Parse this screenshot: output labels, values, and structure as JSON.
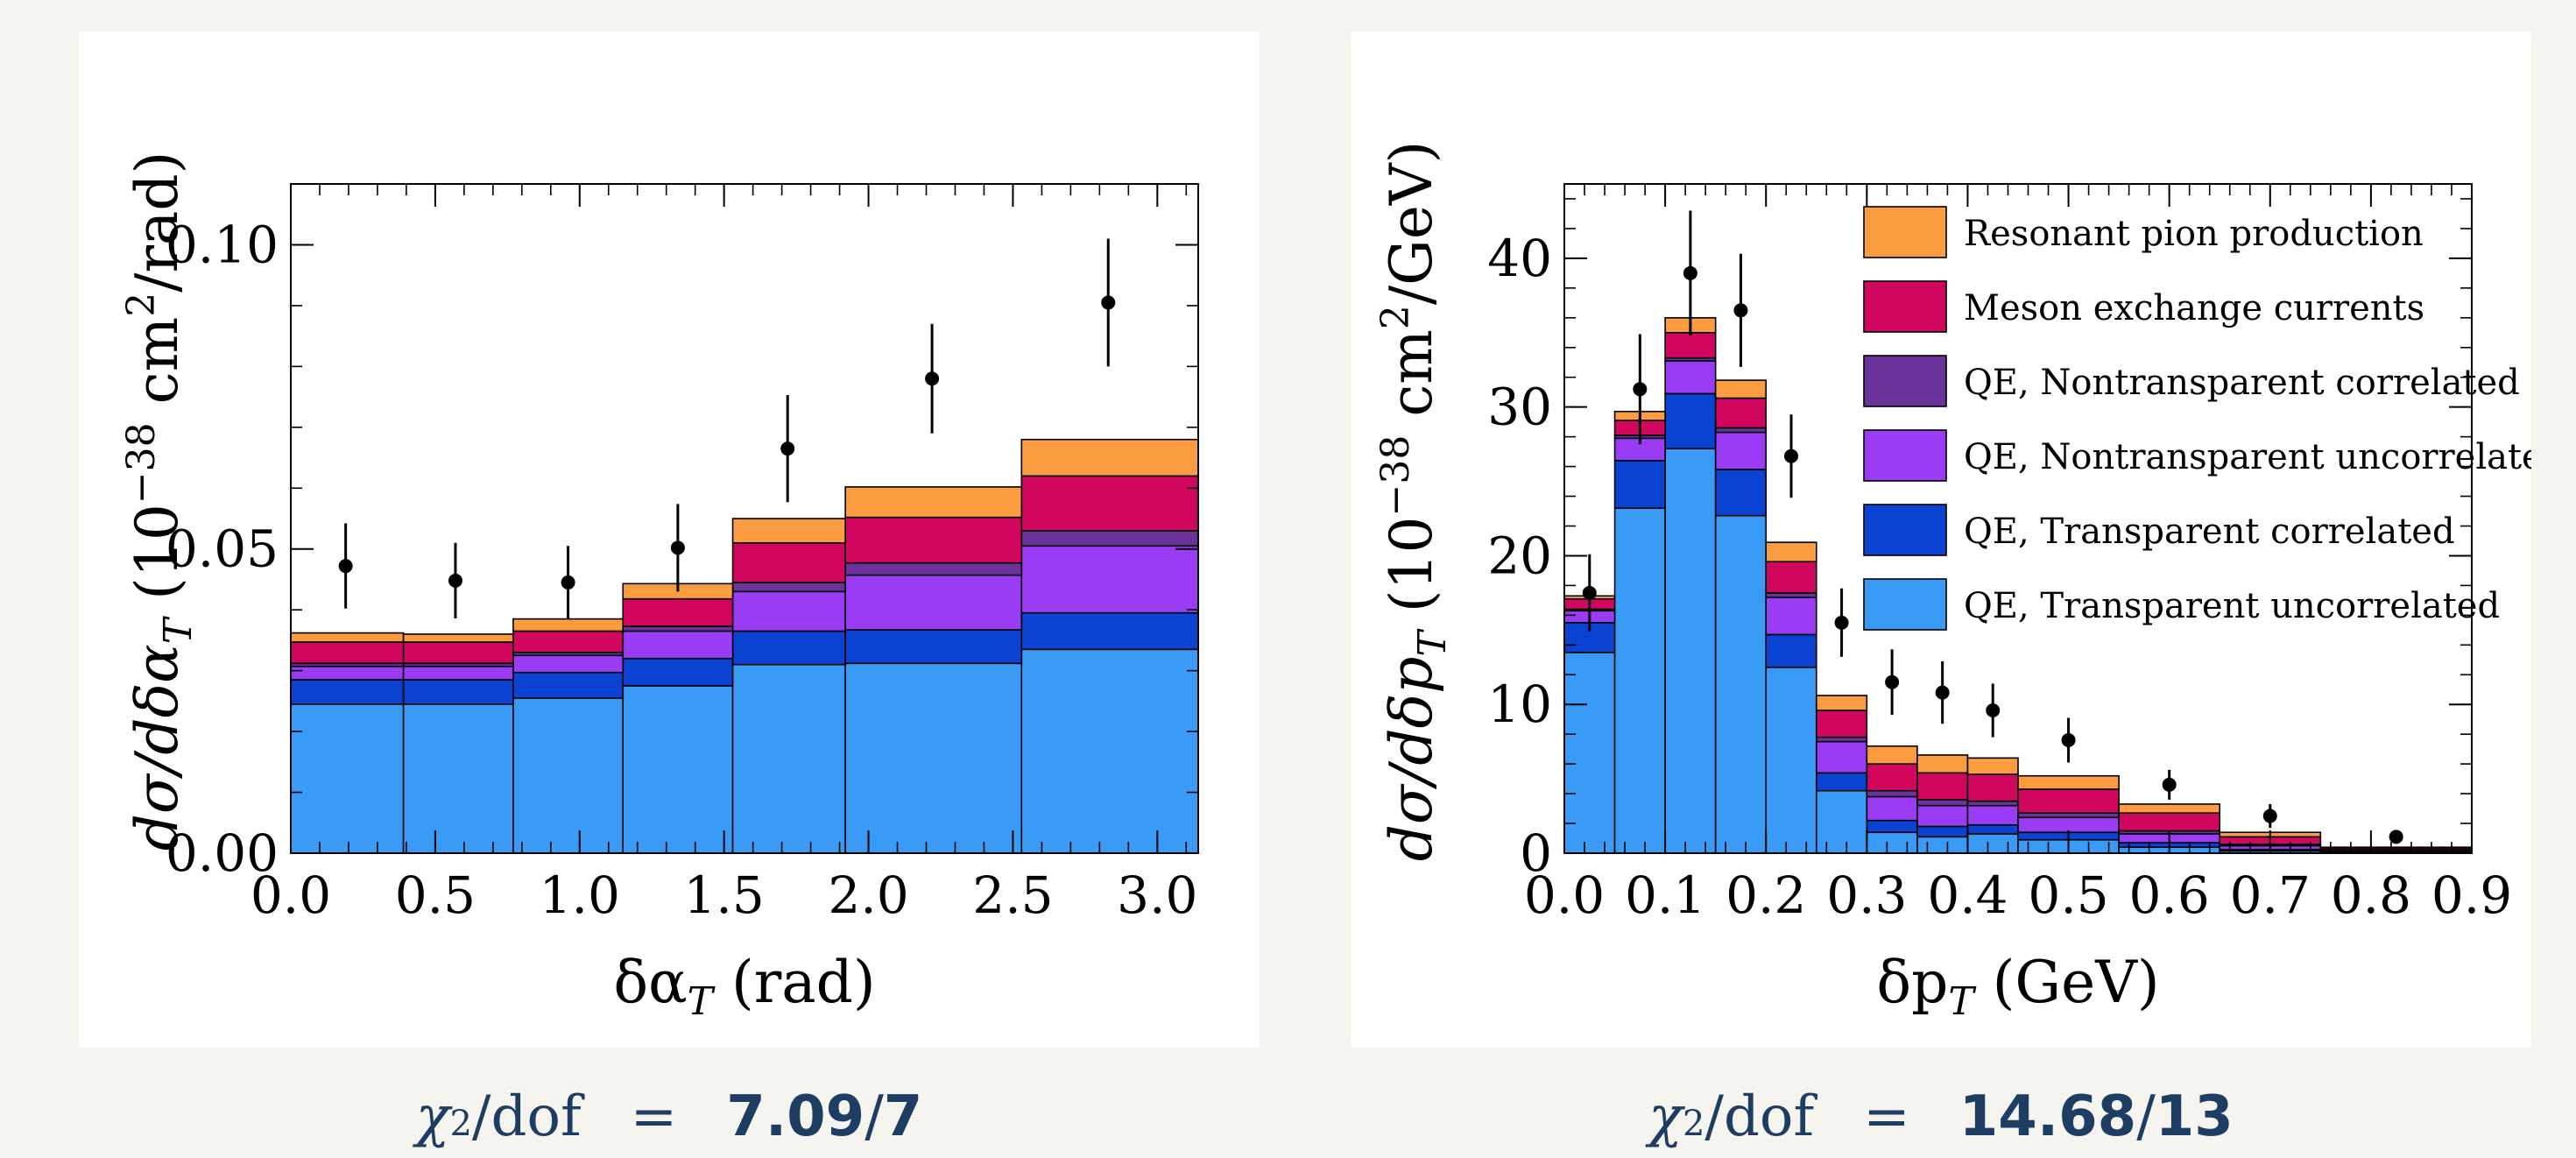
{
  "colors": {
    "resonant": "#fc9c40",
    "mec": "#d1065f",
    "qe_nt_corr": "#6b3399",
    "qe_nt_uncorr": "#9b3cf5",
    "qe_t_corr": "#0a42d1",
    "qe_t_uncorr": "#3a9bf7",
    "data": "#000000"
  },
  "legend": {
    "resonant": "Resonant pion production",
    "mec": "Meson exchange currents",
    "qe_nt_corr": "QE, Nontransparent correlated",
    "qe_nt_uncorr": "QE, Nontransparent uncorrelated",
    "qe_t_corr": "QE, Transparent correlated",
    "qe_t_uncorr": "QE, Transparent uncorrelated"
  },
  "chi": [
    {
      "sym": "χ",
      "sup": "2",
      "den": "/dof",
      "eq": "=",
      "num": "7.09",
      "slash": "/",
      "dof": "7"
    },
    {
      "sym": "χ",
      "sup": "2",
      "den": "/dof",
      "eq": "=",
      "num": "14.68",
      "slash": "/",
      "dof": "13"
    }
  ],
  "chart_data": [
    {
      "type": "bar",
      "stacked": true,
      "xlabel": "δα",
      "xlabel_sub": "T",
      "xlabel_unit": " (rad)",
      "ylabel": "dσ/dδα",
      "ylabel_sub": "T",
      "ylabel_unit_pre": " (10",
      "ylabel_unit_exp": "−38",
      "ylabel_unit_mid": " cm",
      "ylabel_unit_exp2": "2",
      "ylabel_unit_post": "/rad)",
      "xlim": [
        0,
        3.14159
      ],
      "ylim": [
        0,
        0.11
      ],
      "xticks": [
        0.0,
        0.5,
        1.0,
        1.5,
        2.0,
        2.5,
        3.0
      ],
      "xtick_labels": [
        "0.0",
        "0.5",
        "1.0",
        "1.5",
        "2.0",
        "2.5",
        "3.0"
      ],
      "yticks": [
        0.0,
        0.05,
        0.1
      ],
      "ytick_labels": [
        "0.00",
        "0.05",
        "0.10"
      ],
      "legend": false,
      "bin_edges": [
        0,
        0.39,
        0.77,
        1.15,
        1.53,
        1.92,
        2.53,
        3.14159
      ],
      "series": [
        {
          "key": "qe_t_uncorr",
          "values": [
            0.0245,
            0.0245,
            0.0255,
            0.0275,
            0.031,
            0.0312,
            0.0335
          ]
        },
        {
          "key": "qe_t_corr",
          "values": [
            0.004,
            0.004,
            0.0042,
            0.0045,
            0.0055,
            0.0055,
            0.006
          ]
        },
        {
          "key": "qe_nt_uncorr",
          "values": [
            0.0022,
            0.0022,
            0.0028,
            0.0045,
            0.0065,
            0.009,
            0.011
          ]
        },
        {
          "key": "qe_nt_corr",
          "values": [
            0.0005,
            0.0005,
            0.0005,
            0.0008,
            0.0015,
            0.002,
            0.0025
          ]
        },
        {
          "key": "mec",
          "values": [
            0.0035,
            0.0035,
            0.0035,
            0.0045,
            0.0065,
            0.0075,
            0.009
          ]
        },
        {
          "key": "resonant",
          "values": [
            0.0015,
            0.0013,
            0.002,
            0.0025,
            0.004,
            0.005,
            0.006
          ]
        }
      ],
      "data_points": {
        "x": [
          0.19,
          0.57,
          0.96,
          1.34,
          1.72,
          2.22,
          2.83
        ],
        "y": [
          0.0472,
          0.0448,
          0.0445,
          0.0502,
          0.0665,
          0.078,
          0.0905
        ],
        "err": [
          0.007,
          0.0062,
          0.006,
          0.0072,
          0.0088,
          0.009,
          0.0105
        ]
      }
    },
    {
      "type": "bar",
      "stacked": true,
      "xlabel": "δp",
      "xlabel_sub": "T",
      "xlabel_unit": " (GeV)",
      "ylabel": "dσ/dδp",
      "ylabel_sub": "T",
      "ylabel_unit_pre": " (10",
      "ylabel_unit_exp": "−38",
      "ylabel_unit_mid": " cm",
      "ylabel_unit_exp2": "2",
      "ylabel_unit_post": "/GeV)",
      "xlim": [
        0,
        0.9
      ],
      "ylim": [
        0,
        45
      ],
      "xticks": [
        0.0,
        0.1,
        0.2,
        0.3,
        0.4,
        0.5,
        0.6,
        0.7,
        0.8,
        0.9
      ],
      "xtick_labels": [
        "0.0",
        "0.1",
        "0.2",
        "0.3",
        "0.4",
        "0.5",
        "0.6",
        "0.7",
        "0.8",
        "0.9"
      ],
      "yticks": [
        0,
        10,
        20,
        30,
        40
      ],
      "ytick_labels": [
        "0",
        "10",
        "20",
        "30",
        "40"
      ],
      "legend": true,
      "legend_position": "top-right",
      "bin_edges": [
        0,
        0.05,
        0.1,
        0.15,
        0.2,
        0.25,
        0.3,
        0.35,
        0.4,
        0.45,
        0.55,
        0.65,
        0.75,
        0.9
      ],
      "series": [
        {
          "key": "qe_t_uncorr",
          "values": [
            13.5,
            23.2,
            27.2,
            22.7,
            12.5,
            4.2,
            1.4,
            1.1,
            1.3,
            0.9,
            0.4,
            0.15,
            0.05
          ]
        },
        {
          "key": "qe_t_corr",
          "values": [
            2.0,
            3.2,
            3.7,
            3.1,
            2.2,
            1.2,
            0.8,
            0.7,
            0.6,
            0.5,
            0.3,
            0.1,
            0.05
          ]
        },
        {
          "key": "qe_nt_uncorr",
          "values": [
            0.8,
            1.5,
            2.2,
            2.5,
            2.5,
            2.1,
            1.6,
            1.4,
            1.3,
            1.0,
            0.6,
            0.25,
            0.05
          ]
        },
        {
          "key": "qe_nt_corr",
          "values": [
            0.1,
            0.2,
            0.2,
            0.3,
            0.3,
            0.3,
            0.4,
            0.4,
            0.3,
            0.3,
            0.2,
            0.1,
            0.03
          ]
        },
        {
          "key": "mec",
          "values": [
            0.7,
            1.0,
            1.7,
            2.0,
            2.1,
            1.8,
            1.8,
            1.8,
            1.8,
            1.6,
            1.2,
            0.5,
            0.12
          ]
        },
        {
          "key": "resonant",
          "values": [
            0.2,
            0.6,
            1.0,
            1.2,
            1.3,
            1.0,
            1.2,
            1.2,
            1.1,
            0.9,
            0.6,
            0.3,
            0.1
          ]
        }
      ],
      "data_points": {
        "x": [
          0.025,
          0.075,
          0.125,
          0.175,
          0.225,
          0.275,
          0.325,
          0.375,
          0.425,
          0.5,
          0.6,
          0.7,
          0.825
        ],
        "y": [
          17.5,
          31.2,
          39.0,
          36.5,
          26.7,
          15.5,
          11.5,
          10.8,
          9.6,
          7.6,
          4.6,
          2.5,
          1.1
        ],
        "err": [
          2.6,
          3.7,
          4.2,
          3.8,
          2.8,
          2.3,
          2.2,
          2.1,
          1.8,
          1.5,
          1.0,
          0.8,
          0.4
        ]
      }
    }
  ]
}
